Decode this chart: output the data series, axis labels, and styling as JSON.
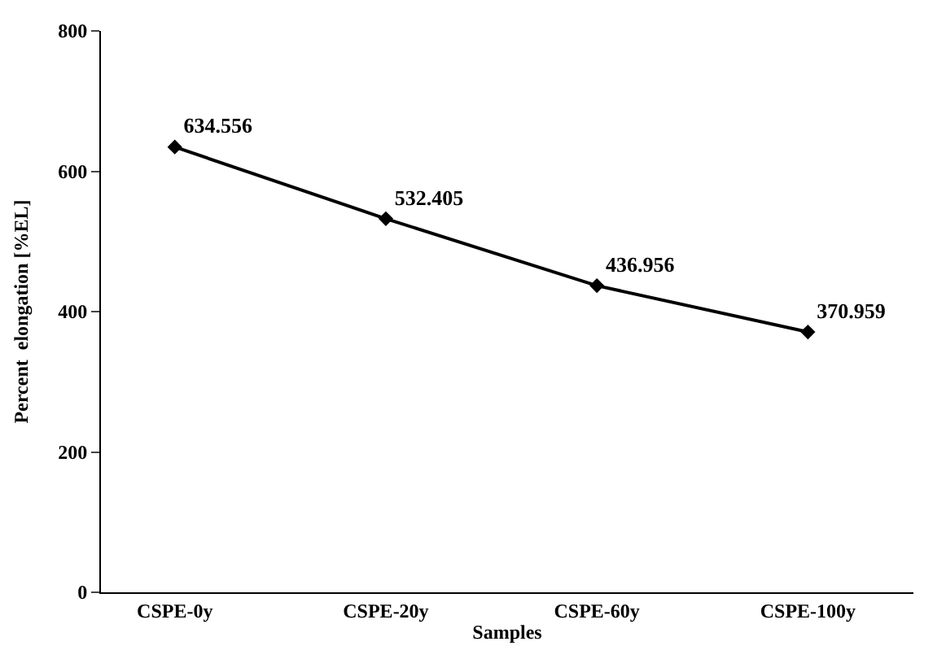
{
  "chart_data": {
    "type": "line",
    "xlabel": "Samples",
    "ylabel": "Percent  elongation [%EL]",
    "categories": [
      "CSPE-0y",
      "CSPE-20y",
      "CSPE-60y",
      "CSPE-100y"
    ],
    "series": [
      {
        "color": "#000000",
        "values": [
          634.556,
          532.405,
          436.956,
          370.959
        ]
      }
    ],
    "ylim": [
      0,
      800
    ],
    "yticks": [
      0,
      200,
      400,
      600,
      800
    ],
    "legend": false,
    "marker": "diamond",
    "line_style": "solid",
    "data_labels": true
  }
}
